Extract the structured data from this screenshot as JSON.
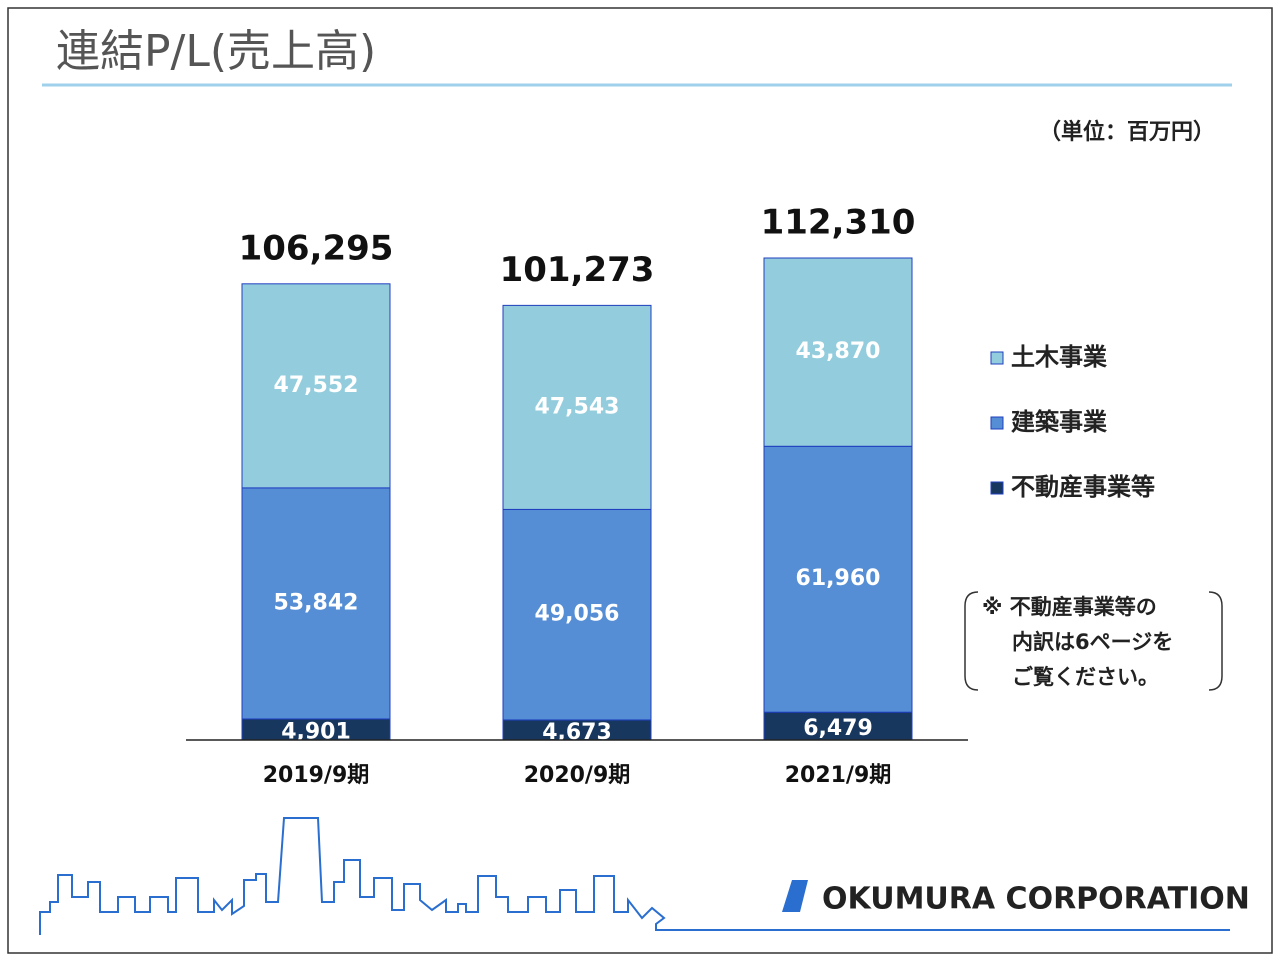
{
  "title": "連結P/L(売上高)",
  "unit_note": "（単位：百万円）",
  "note_lines": [
    "※ 不動産事業等の",
    "内訳は6ページを",
    "ご覧ください。"
  ],
  "logo": "OKUMURA CORPORATION",
  "chart_data": {
    "type": "stacked-bar",
    "categories": [
      "2019/9期",
      "2020/9期",
      "2021/9期"
    ],
    "series": [
      {
        "name": "不動産事業等",
        "color": "#17375e",
        "values": [
          4901,
          4673,
          6479
        ],
        "value_labels": [
          "4,901",
          "4,673",
          "6,479"
        ]
      },
      {
        "name": "建築事業",
        "color": "#558ed5",
        "values": [
          53842,
          49056,
          61960
        ],
        "value_labels": [
          "53,842",
          "49,056",
          "61,960"
        ]
      },
      {
        "name": "土木事業",
        "color": "#93cddd",
        "values": [
          47552,
          47543,
          43870
        ],
        "value_labels": [
          "47,552",
          "47,543",
          "43,870"
        ]
      }
    ],
    "totals": [
      106295,
      101273,
      112310
    ],
    "total_labels": [
      "106,295",
      "101,273",
      "112,310"
    ]
  }
}
